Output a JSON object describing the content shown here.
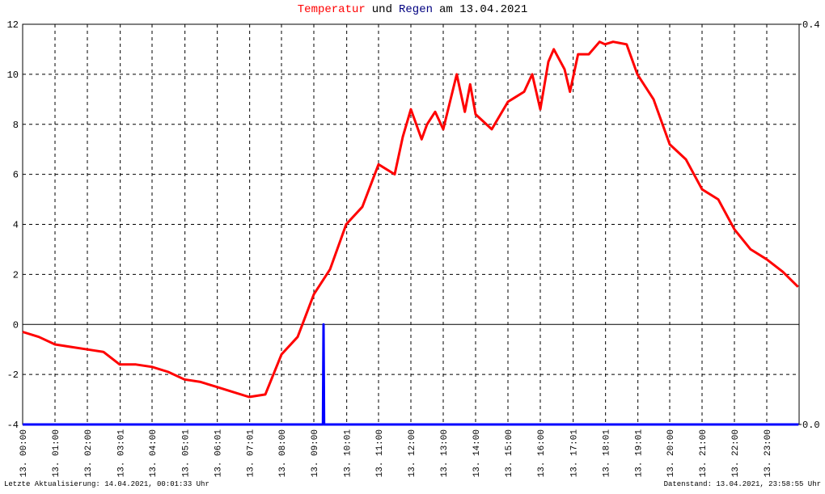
{
  "chart_data": {
    "type": "line",
    "title_parts": [
      "Temperatur",
      "und",
      "Regen",
      "am 13.04.2021"
    ],
    "title_colors": [
      "#ff0000",
      "#000000",
      "#000080",
      "#000000"
    ],
    "footer_left": "Letzte Aktualisierung: 14.04.2021, 00:01:33 Uhr",
    "footer_right": "Datenstand: 13.04.2021, 23:58:55 Uhr",
    "xlim": [
      0,
      1440
    ],
    "xticks": [
      {
        "value": 0,
        "label": "13. 00:00"
      },
      {
        "value": 60,
        "label": "13. 01:00"
      },
      {
        "value": 120,
        "label": "13. 02:00"
      },
      {
        "value": 181,
        "label": "13. 03:01"
      },
      {
        "value": 240,
        "label": "13. 04:00"
      },
      {
        "value": 301,
        "label": "13. 05:01"
      },
      {
        "value": 361,
        "label": "13. 06:01"
      },
      {
        "value": 421,
        "label": "13. 07:01"
      },
      {
        "value": 480,
        "label": "13. 08:00"
      },
      {
        "value": 540,
        "label": "13. 09:00"
      },
      {
        "value": 601,
        "label": "13. 10:01"
      },
      {
        "value": 660,
        "label": "13. 11:00"
      },
      {
        "value": 720,
        "label": "13. 12:00"
      },
      {
        "value": 780,
        "label": "13. 13:00"
      },
      {
        "value": 840,
        "label": "13. 14:00"
      },
      {
        "value": 900,
        "label": "13. 15:00"
      },
      {
        "value": 960,
        "label": "13. 16:00"
      },
      {
        "value": 1021,
        "label": "13. 17:01"
      },
      {
        "value": 1081,
        "label": "13. 18:01"
      },
      {
        "value": 1141,
        "label": "13. 19:01"
      },
      {
        "value": 1200,
        "label": "13. 20:00"
      },
      {
        "value": 1260,
        "label": "13. 21:00"
      },
      {
        "value": 1320,
        "label": "13. 22:00"
      },
      {
        "value": 1380,
        "label": "13. 23:00"
      }
    ],
    "ylim": [
      -4,
      12
    ],
    "yticks": [
      -4,
      -2,
      0,
      2,
      4,
      6,
      8,
      10,
      12
    ],
    "y2lim": [
      0,
      0.4
    ],
    "y2ticks": [
      {
        "value": 0,
        "label": "0.0"
      },
      {
        "value": 0.4,
        "label": "0.4"
      }
    ],
    "grid": true,
    "series": [
      {
        "name": "Temperatur",
        "color": "#ff0000",
        "x": [
          0,
          30,
          60,
          90,
          120,
          150,
          180,
          210,
          240,
          270,
          300,
          330,
          360,
          390,
          420,
          450,
          480,
          510,
          540,
          570,
          600,
          630,
          660,
          690,
          705,
          720,
          740,
          750,
          765,
          780,
          805,
          820,
          830,
          840,
          870,
          900,
          930,
          945,
          960,
          975,
          985,
          1005,
          1015,
          1030,
          1050,
          1070,
          1080,
          1095,
          1120,
          1140,
          1170,
          1200,
          1230,
          1260,
          1290,
          1320,
          1350,
          1380,
          1410,
          1438
        ],
        "values": [
          -0.3,
          -0.5,
          -0.8,
          -0.9,
          -1.0,
          -1.1,
          -1.6,
          -1.6,
          -1.7,
          -1.9,
          -2.2,
          -2.3,
          -2.5,
          -2.7,
          -2.9,
          -2.8,
          -1.2,
          -0.5,
          1.2,
          2.2,
          4.0,
          4.7,
          6.4,
          6.0,
          7.5,
          8.6,
          7.4,
          8.0,
          8.5,
          7.8,
          10.0,
          8.5,
          9.6,
          8.4,
          7.8,
          8.9,
          9.3,
          10.0,
          8.6,
          10.5,
          11.0,
          10.2,
          9.3,
          10.8,
          10.8,
          11.3,
          11.2,
          11.3,
          11.2,
          10.0,
          9.0,
          7.2,
          6.6,
          5.4,
          5.0,
          3.8,
          3.0,
          2.6,
          2.1,
          1.5
        ]
      },
      {
        "name": "Regen",
        "color": "#0000ff",
        "axis": "y2",
        "x": [
          0,
          557,
          558,
          559,
          1439
        ],
        "values": [
          0,
          0,
          0.1,
          0,
          0
        ]
      }
    ]
  }
}
